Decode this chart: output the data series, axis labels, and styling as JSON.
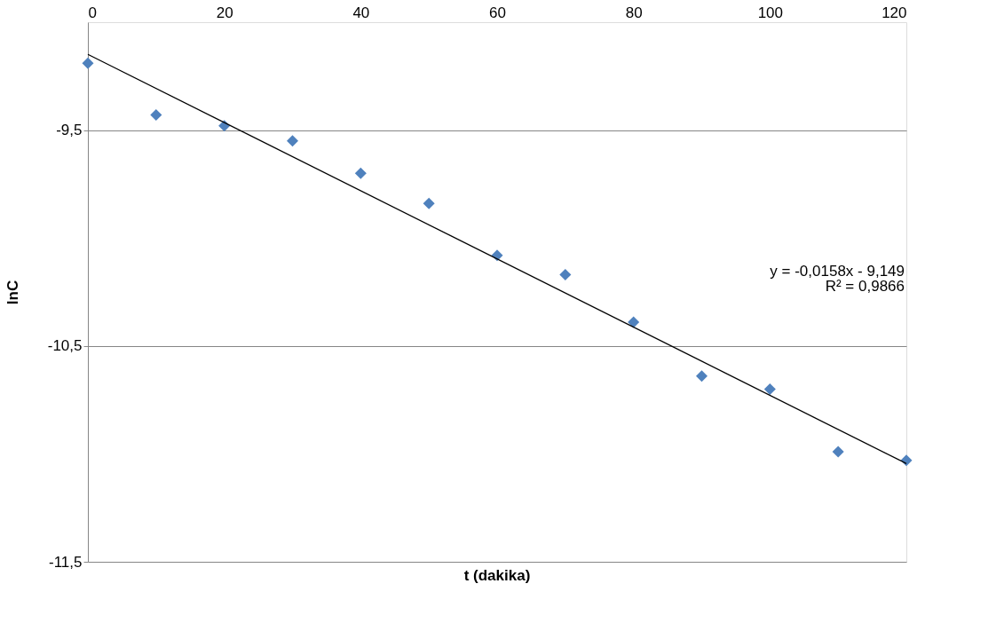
{
  "chart_data": {
    "type": "scatter",
    "xlabel": "t (dakika)",
    "ylabel": "lnC",
    "xlim": [
      0,
      120
    ],
    "xticks": [
      0,
      20,
      40,
      60,
      80,
      100,
      120
    ],
    "ylim": [
      -11.5,
      -9
    ],
    "yticks": [
      {
        "value": -9.5,
        "label": "-9,5"
      },
      {
        "value": -10.5,
        "label": "-10,5"
      },
      {
        "value": -11.5,
        "label": "-11,5"
      }
    ],
    "grid": "y",
    "x": [
      0,
      10,
      20,
      30,
      40,
      50,
      60,
      70,
      80,
      90,
      100,
      110,
      120
    ],
    "series": [
      {
        "marker": "diamond",
        "color": "#4f81bd",
        "values": [
          -9.19,
          -9.43,
          -9.48,
          -9.55,
          -9.7,
          -9.84,
          -10.08,
          -10.17,
          -10.39,
          -10.64,
          -10.7,
          -10.99,
          -11.03
        ]
      },
      {
        "type": "line",
        "marker": "none",
        "color": "#000000",
        "x": [
          0,
          120
        ],
        "values": [
          -9.149,
          -11.045
        ]
      }
    ],
    "annotations": [
      "y = -0,0158x - 9,149",
      "R² = 0,9866"
    ]
  }
}
